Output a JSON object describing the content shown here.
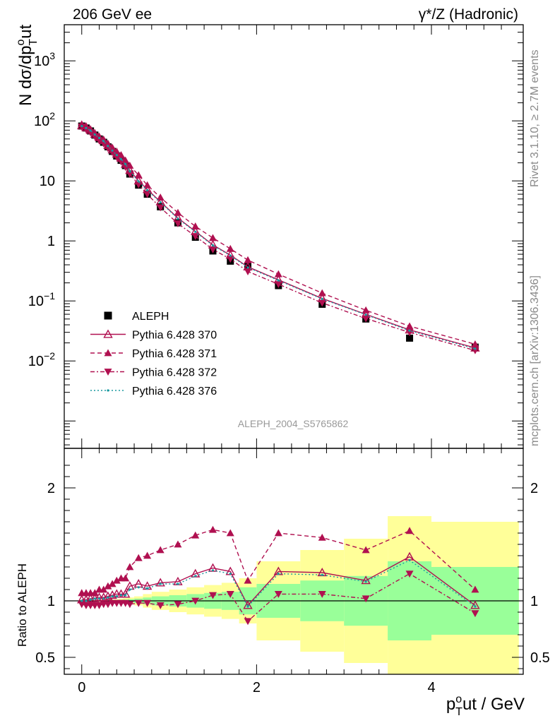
{
  "header": {
    "left": "206 GeV ee",
    "right": "γ*/Z (Hadronic)"
  },
  "side_text": {
    "rivet": "Rivet 3.1.10, ≥ 2.7M events",
    "mcplots": "mcplots.cern.ch [arXiv:1306.3436]"
  },
  "analysis_id": "ALEPH_2004_S5765862",
  "colors": {
    "data": "#000000",
    "mc": "#b01050",
    "mc376": "#1a9aa0",
    "band_green": "#99ff99",
    "band_yellow": "#ffff99"
  },
  "chart_data": [
    {
      "type": "scatter",
      "title": "",
      "xlabel": "p_T^out / GeV",
      "ylabel": "N dσ/dp_T^out",
      "yscale": "log",
      "xlim": [
        -0.2,
        5.05
      ],
      "ylim": [
        0.00035,
        4000
      ],
      "ytick_labels": [
        "10^-2",
        "10^-1",
        "1",
        "10",
        "10^2",
        "10^3"
      ],
      "legend_position": "bottom-left",
      "x": [
        0.0,
        0.05,
        0.1,
        0.15,
        0.2,
        0.25,
        0.3,
        0.35,
        0.4,
        0.45,
        0.5,
        0.55,
        0.65,
        0.75,
        0.9,
        1.1,
        1.3,
        1.5,
        1.7,
        1.9,
        2.25,
        2.75,
        3.25,
        3.75,
        4.5
      ],
      "series": [
        {
          "name": "ALEPH",
          "marker": "square",
          "values": [
            82,
            76,
            68,
            58,
            50,
            44,
            37,
            31,
            26,
            22,
            18,
            13,
            8.5,
            6.0,
            3.7,
            2.0,
            1.15,
            0.68,
            0.46,
            0.38,
            0.18,
            0.088,
            0.05,
            0.024,
            0.017
          ]
        },
        {
          "name": "Pythia 6.428 370",
          "marker": "open-triangle",
          "dash": "solid",
          "values": [
            83,
            77,
            70,
            60,
            53,
            47,
            39,
            33,
            28,
            24,
            19,
            15,
            10,
            7.2,
            4.5,
            2.4,
            1.44,
            0.86,
            0.58,
            0.37,
            0.225,
            0.11,
            0.06,
            0.033,
            0.0165
          ]
        },
        {
          "name": "Pythia 6.428 371",
          "marker": "triangle-up",
          "dash": "dashed",
          "values": [
            88,
            82,
            73,
            63,
            55,
            49,
            42,
            36,
            31,
            27,
            22,
            18,
            12.5,
            8.5,
            5.3,
            2.95,
            1.75,
            1.12,
            0.74,
            0.48,
            0.28,
            0.135,
            0.07,
            0.038,
            0.019
          ]
        },
        {
          "name": "Pythia 6.428 372",
          "marker": "triangle-down",
          "dash": "dashdot",
          "values": [
            80,
            72,
            64,
            55,
            47,
            42,
            35,
            30,
            25,
            21,
            17,
            13,
            8.7,
            6.0,
            3.6,
            1.95,
            1.2,
            0.72,
            0.5,
            0.31,
            0.19,
            0.093,
            0.051,
            0.03,
            0.015
          ]
        },
        {
          "name": "Pythia 6.428 376",
          "marker": "dot",
          "dash": "dotted",
          "values": [
            82,
            76,
            69,
            59,
            52,
            46,
            38,
            32,
            27,
            23,
            19,
            14.5,
            9.8,
            7.0,
            4.4,
            2.35,
            1.42,
            0.84,
            0.57,
            0.36,
            0.22,
            0.108,
            0.059,
            0.032,
            0.016
          ]
        }
      ]
    },
    {
      "type": "scatter",
      "title": "",
      "xlabel": "p_T^out / GeV",
      "ylabel": "Ratio to ALEPH",
      "xlim": [
        -0.2,
        5.05
      ],
      "ylim": [
        0.35,
        2.35
      ],
      "xtick_labels": [
        "0",
        "2",
        "4"
      ],
      "ytick_labels": [
        "0.5",
        "1",
        "2"
      ],
      "bins": [
        [
          -0.03,
          0.025
        ],
        [
          0.025,
          0.075
        ],
        [
          0.075,
          0.125
        ],
        [
          0.125,
          0.175
        ],
        [
          0.175,
          0.225
        ],
        [
          0.225,
          0.275
        ],
        [
          0.275,
          0.325
        ],
        [
          0.325,
          0.375
        ],
        [
          0.375,
          0.425
        ],
        [
          0.425,
          0.475
        ],
        [
          0.475,
          0.525
        ],
        [
          0.525,
          0.6
        ],
        [
          0.6,
          0.7
        ],
        [
          0.7,
          0.8
        ],
        [
          0.8,
          1.0
        ],
        [
          1.0,
          1.2
        ],
        [
          1.2,
          1.4
        ],
        [
          1.4,
          1.6
        ],
        [
          1.6,
          1.8
        ],
        [
          1.8,
          2.0
        ],
        [
          2.0,
          2.5
        ],
        [
          2.5,
          3.0
        ],
        [
          3.0,
          3.5
        ],
        [
          3.5,
          4.0
        ],
        [
          4.0,
          5.0
        ]
      ],
      "stat_band": [
        0.004,
        0.004,
        0.004,
        0.004,
        0.005,
        0.005,
        0.006,
        0.006,
        0.008,
        0.01,
        0.012,
        0.015,
        0.02,
        0.03,
        0.04,
        0.05,
        0.06,
        0.07,
        0.08,
        0.12,
        0.15,
        0.18,
        0.22,
        0.35,
        0.3
      ],
      "total_band": [
        0.008,
        0.008,
        0.008,
        0.008,
        0.01,
        0.01,
        0.012,
        0.012,
        0.015,
        0.02,
        0.025,
        0.03,
        0.04,
        0.06,
        0.08,
        0.1,
        0.12,
        0.14,
        0.16,
        0.2,
        0.35,
        0.45,
        0.55,
        0.75,
        0.7
      ],
      "x": [
        0.0,
        0.05,
        0.1,
        0.15,
        0.2,
        0.25,
        0.3,
        0.35,
        0.4,
        0.45,
        0.5,
        0.55,
        0.65,
        0.75,
        0.9,
        1.1,
        1.3,
        1.5,
        1.7,
        1.9,
        2.25,
        2.75,
        3.25,
        3.75,
        4.5
      ],
      "series": [
        {
          "name": "Pythia 6.428 370",
          "values": [
            1.01,
            1.01,
            1.02,
            1.02,
            1.03,
            1.03,
            1.04,
            1.05,
            1.06,
            1.06,
            1.06,
            1.13,
            1.15,
            1.13,
            1.16,
            1.17,
            1.24,
            1.29,
            1.26,
            0.96,
            1.26,
            1.25,
            1.18,
            1.39,
            0.96
          ]
        },
        {
          "name": "Pythia 6.428 371",
          "values": [
            1.07,
            1.07,
            1.07,
            1.07,
            1.1,
            1.1,
            1.13,
            1.15,
            1.18,
            1.2,
            1.2,
            1.3,
            1.38,
            1.4,
            1.45,
            1.5,
            1.58,
            1.63,
            1.6,
            1.18,
            1.6,
            1.56,
            1.45,
            1.62,
            1.1
          ]
        },
        {
          "name": "Pythia 6.428 372",
          "values": [
            0.97,
            0.96,
            0.96,
            0.96,
            0.96,
            0.97,
            0.97,
            0.98,
            0.98,
            0.98,
            0.98,
            0.97,
            0.98,
            0.98,
            0.96,
            0.97,
            1.0,
            1.05,
            1.06,
            0.82,
            1.06,
            1.06,
            1.02,
            1.24,
            0.89
          ]
        },
        {
          "name": "Pythia 6.428 376",
          "values": [
            1.0,
            1.0,
            1.01,
            1.02,
            1.02,
            1.02,
            1.03,
            1.04,
            1.04,
            1.05,
            1.05,
            1.1,
            1.12,
            1.11,
            1.15,
            1.15,
            1.22,
            1.27,
            1.24,
            0.95,
            1.24,
            1.23,
            1.17,
            1.36,
            0.95
          ]
        }
      ]
    }
  ]
}
